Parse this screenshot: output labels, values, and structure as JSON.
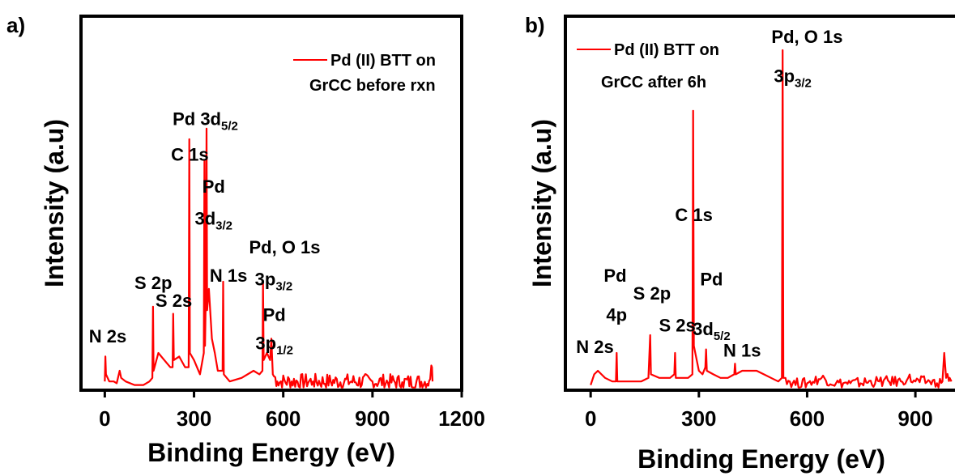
{
  "chart_data": [
    {
      "panel": "a)",
      "type": "line",
      "xlabel": "Binding Energy (eV)",
      "ylabel": "Intensity (a.u)",
      "xlim": [
        -80,
        1200
      ],
      "xticks": [
        0,
        300,
        600,
        900,
        1200
      ],
      "ylim": [
        0,
        100
      ],
      "grid": false,
      "legend": {
        "position": "top-right",
        "line1": "Pd (II) BTT on",
        "line2": "GrCC before rxn",
        "color": "#ff0000"
      },
      "series": [
        {
          "color": "#ff0000",
          "points": [
            [
              0,
              2
            ],
            [
              2,
              9
            ],
            [
              4,
              4
            ],
            [
              15,
              2
            ],
            [
              30,
              2
            ],
            [
              40,
              1.5
            ],
            [
              50,
              5
            ],
            [
              55,
              3
            ],
            [
              70,
              2
            ],
            [
              100,
              1
            ],
            [
              130,
              1
            ],
            [
              150,
              2
            ],
            [
              160,
              3
            ],
            [
              162,
              23
            ],
            [
              164,
              5
            ],
            [
              180,
              10
            ],
            [
              200,
              8
            ],
            [
              220,
              6
            ],
            [
              228,
              6
            ],
            [
              230,
              21
            ],
            [
              232,
              8
            ],
            [
              250,
              9
            ],
            [
              270,
              6
            ],
            [
              282,
              6
            ],
            [
              284,
              70
            ],
            [
              286,
              10
            ],
            [
              300,
              8
            ],
            [
              320,
              4
            ],
            [
              333,
              10
            ],
            [
              335,
              64
            ],
            [
              337,
              12
            ],
            [
              340,
              28
            ],
            [
              342,
              73
            ],
            [
              344,
              22
            ],
            [
              350,
              28
            ],
            [
              360,
              14
            ],
            [
              370,
              10
            ],
            [
              380,
              5
            ],
            [
              396,
              5
            ],
            [
              398,
              30
            ],
            [
              400,
              4
            ],
            [
              420,
              2
            ],
            [
              460,
              3
            ],
            [
              500,
              5
            ],
            [
              520,
              4
            ],
            [
              530,
              5
            ],
            [
              532,
              30
            ],
            [
              534,
              8
            ],
            [
              545,
              10
            ],
            [
              556,
              8
            ],
            [
              560,
              14
            ],
            [
              565,
              4
            ],
            [
              580,
              2
            ],
            [
              700,
              2
            ],
            [
              900,
              2
            ],
            [
              1000,
              1.8
            ],
            [
              1090,
              2
            ],
            [
              1100,
              6
            ],
            [
              1102,
              2
            ]
          ],
          "noise_from": 560,
          "noise_to": 1100,
          "noise_amp": 2.2
        }
      ],
      "annotations": [
        {
          "x": 10,
          "y": 13,
          "text": "N 2s",
          "sub": ""
        },
        {
          "x": 163,
          "y": 28,
          "text": "S 2p",
          "sub": ""
        },
        {
          "x": 232,
          "y": 23,
          "text": "S 2s",
          "sub": ""
        },
        {
          "x": 286,
          "y": 64,
          "text": "C 1s",
          "sub": ""
        },
        {
          "x": 338,
          "y": 74,
          "text": "Pd 3d",
          "sub": "5/2"
        },
        {
          "x": 366,
          "y": 55,
          "text": "Pd",
          "sub": ""
        },
        {
          "x": 366,
          "y": 46,
          "text": "3d",
          "sub": "3/2"
        },
        {
          "x": 416,
          "y": 30,
          "text": "N 1s",
          "sub": ""
        },
        {
          "x": 605,
          "y": 38,
          "text": "Pd, O 1s",
          "sub": ""
        },
        {
          "x": 568,
          "y": 29,
          "text": "3p",
          "sub": "3/2"
        },
        {
          "x": 570,
          "y": 19,
          "text": "Pd",
          "sub": ""
        },
        {
          "x": 570,
          "y": 11,
          "text": "3p",
          "sub": "1/2"
        }
      ]
    },
    {
      "panel": "b)",
      "type": "line",
      "xlabel": "Binding Energy (eV)",
      "ylabel": "Intensity (a.u)",
      "xlim": [
        -70,
        1030
      ],
      "xticks": [
        0,
        300,
        600,
        900
      ],
      "ylim": [
        0,
        100
      ],
      "grid": false,
      "legend": {
        "position": "top-left",
        "line1": "Pd (II) BTT on",
        "line2": "GrCC after 6h",
        "color": "#ff0000"
      },
      "series": [
        {
          "color": "#ff0000",
          "points": [
            [
              0,
              1
            ],
            [
              10,
              4
            ],
            [
              20,
              5
            ],
            [
              30,
              4
            ],
            [
              40,
              3
            ],
            [
              60,
              2
            ],
            [
              70,
              2
            ],
            [
              72,
              10
            ],
            [
              74,
              2
            ],
            [
              100,
              2
            ],
            [
              140,
              2
            ],
            [
              160,
              3
            ],
            [
              165,
              15
            ],
            [
              167,
              4
            ],
            [
              190,
              3
            ],
            [
              220,
              3
            ],
            [
              232,
              4
            ],
            [
              234,
              10
            ],
            [
              236,
              3
            ],
            [
              270,
              3
            ],
            [
              282,
              4
            ],
            [
              284,
              78
            ],
            [
              286,
              12
            ],
            [
              300,
              5
            ],
            [
              310,
              4
            ],
            [
              318,
              6
            ],
            [
              320,
              11
            ],
            [
              322,
              5
            ],
            [
              340,
              4
            ],
            [
              360,
              3
            ],
            [
              380,
              3
            ],
            [
              398,
              4
            ],
            [
              400,
              7
            ],
            [
              402,
              4
            ],
            [
              420,
              5
            ],
            [
              440,
              5
            ],
            [
              460,
              5
            ],
            [
              480,
              4
            ],
            [
              500,
              3
            ],
            [
              520,
              2
            ],
            [
              530,
              3
            ],
            [
              532,
              95
            ],
            [
              534,
              3
            ],
            [
              540,
              3
            ],
            [
              560,
              1.5
            ],
            [
              600,
              1.5
            ],
            [
              640,
              3
            ],
            [
              680,
              1.5
            ],
            [
              720,
              1.5
            ],
            [
              800,
              2
            ],
            [
              860,
              2
            ],
            [
              880,
              3
            ],
            [
              900,
              2
            ],
            [
              940,
              2
            ],
            [
              960,
              1.5
            ],
            [
              975,
              2
            ],
            [
              980,
              10
            ],
            [
              985,
              3
            ],
            [
              995,
              3
            ],
            [
              1000,
              2
            ]
          ],
          "noise_from": 540,
          "noise_to": 1000,
          "noise_amp": 1.5
        }
      ],
      "annotations": [
        {
          "x": 12,
          "y": 10,
          "text": "N 2s",
          "sub": ""
        },
        {
          "x": 68,
          "y": 30,
          "text": "Pd",
          "sub": ""
        },
        {
          "x": 72,
          "y": 19,
          "text": "4p",
          "sub": ""
        },
        {
          "x": 170,
          "y": 25,
          "text": "S 2p",
          "sub": ""
        },
        {
          "x": 240,
          "y": 16,
          "text": "S 2s",
          "sub": ""
        },
        {
          "x": 286,
          "y": 47,
          "text": "C 1s",
          "sub": ""
        },
        {
          "x": 335,
          "y": 29,
          "text": "Pd",
          "sub": ""
        },
        {
          "x": 335,
          "y": 15,
          "text": "3d",
          "sub": "5/2"
        },
        {
          "x": 420,
          "y": 9,
          "text": "N 1s",
          "sub": ""
        },
        {
          "x": 600,
          "y": 97,
          "text": "Pd, O 1s",
          "sub": ""
        },
        {
          "x": 560,
          "y": 86,
          "text": "3p",
          "sub": "3/2"
        }
      ]
    }
  ]
}
